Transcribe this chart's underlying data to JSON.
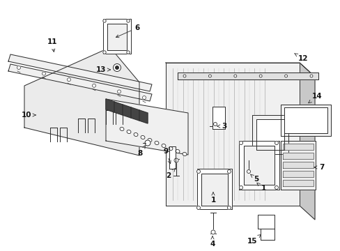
{
  "bg_color": "#ffffff",
  "lc": "#2a2a2a",
  "lw": 0.7,
  "fill_white": "#ffffff",
  "fill_light": "#f0f0f0",
  "fill_mid": "#e0e0e0",
  "fill_dark": "#c8c8c8",
  "fill_panel": "#ebebeb"
}
